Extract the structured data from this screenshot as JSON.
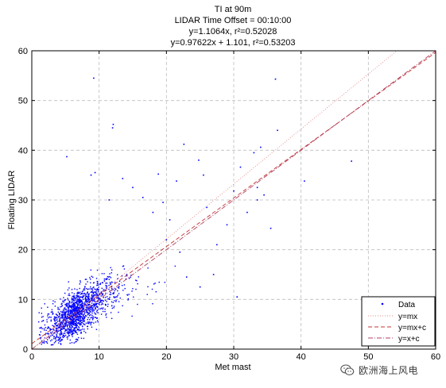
{
  "chart_data": {
    "type": "scatter",
    "title": [
      "TI at 90m",
      "LIDAR Time Offset = 00:10:00",
      "y=1.1064x, r²=0.52028",
      "y=0.97622x + 1.101, r²=0.53203"
    ],
    "xlabel": "Met mast",
    "ylabel": "Floating LIDAR",
    "xlim": [
      0,
      60
    ],
    "ylim": [
      0,
      60
    ],
    "xticks": [
      0,
      10,
      20,
      30,
      40,
      50,
      60
    ],
    "yticks": [
      0,
      10,
      20,
      30,
      40,
      50,
      60
    ],
    "grid": true,
    "grid_style": "dashed",
    "legend_position": "bottom-right",
    "series": [
      {
        "name": "Data",
        "kind": "points",
        "color": "#0000ff",
        "count": 1580,
        "cluster": {
          "mean_x": 6.5,
          "mean_y": 7.0,
          "sd_x": 2.6,
          "sd_y": 3.4,
          "corr": 0.73
        },
        "outliers": [
          [
            9.2,
            54.5
          ],
          [
            36.2,
            54.3
          ],
          [
            12.1,
            45.2
          ],
          [
            12.0,
            44.5
          ],
          [
            36.5,
            44.0
          ],
          [
            34.0,
            40.6
          ],
          [
            33.0,
            39.5
          ],
          [
            47.5,
            37.8
          ],
          [
            5.2,
            38.7
          ],
          [
            24.8,
            38.0
          ],
          [
            31.0,
            36.6
          ],
          [
            25.5,
            35.0
          ],
          [
            40.5,
            33.8
          ],
          [
            33.5,
            32.5
          ],
          [
            34.5,
            31.0
          ],
          [
            30.0,
            31.8
          ],
          [
            9.4,
            35.5
          ],
          [
            8.8,
            35.0
          ],
          [
            13.5,
            34.3
          ],
          [
            18.8,
            35.2
          ],
          [
            22.6,
            41.2
          ],
          [
            32.0,
            27.5
          ],
          [
            33.5,
            30.0
          ],
          [
            35.5,
            24.3
          ],
          [
            26.0,
            28.5
          ],
          [
            21.5,
            33.8
          ],
          [
            19.5,
            29.5
          ],
          [
            20.0,
            22.0
          ],
          [
            29.0,
            25.0
          ],
          [
            25.0,
            12.5
          ],
          [
            30.5,
            10.5
          ],
          [
            23.0,
            14.5
          ],
          [
            27.5,
            21.0
          ],
          [
            22.0,
            19.5
          ],
          [
            18.0,
            27.5
          ],
          [
            16.5,
            30.5
          ],
          [
            15.0,
            32.5
          ],
          [
            11.5,
            30.0
          ],
          [
            27.0,
            15.0
          ],
          [
            20.5,
            26.0
          ]
        ]
      },
      {
        "name": "y=mx",
        "kind": "line",
        "slope": 1.1064,
        "intercept": 0,
        "color": "#e48a8a",
        "dash": "1 2"
      },
      {
        "name": "y=mx+c",
        "kind": "line",
        "slope": 0.97622,
        "intercept": 1.101,
        "color": "#c33333",
        "dash": "5 3"
      },
      {
        "name": "y=x+c",
        "kind": "line",
        "slope": 1,
        "intercept": 0,
        "color": "#b04060",
        "dash": "6 2 1 2"
      }
    ]
  },
  "watermark": {
    "text": "欧洲海上风电",
    "icon": "wechat-icon"
  }
}
